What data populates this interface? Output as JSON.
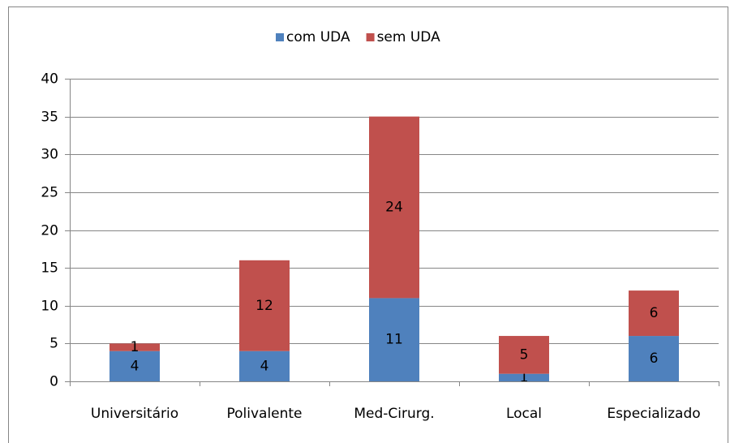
{
  "chart_data": {
    "type": "stacked_bar",
    "categories": [
      "Universitário",
      "Polivalente",
      "Med-Cirurg.",
      "Local",
      "Especializado"
    ],
    "series": [
      {
        "name": "com UDA",
        "color": "#4f81bd",
        "values": [
          4,
          4,
          11,
          1,
          6
        ]
      },
      {
        "name": "sem UDA",
        "color": "#c0504d",
        "values": [
          1,
          12,
          24,
          5,
          6
        ]
      }
    ],
    "ylim": [
      0,
      40
    ],
    "yticks": [
      0,
      5,
      10,
      15,
      20,
      25,
      30,
      35,
      40
    ],
    "grid": true,
    "legend": "top"
  }
}
